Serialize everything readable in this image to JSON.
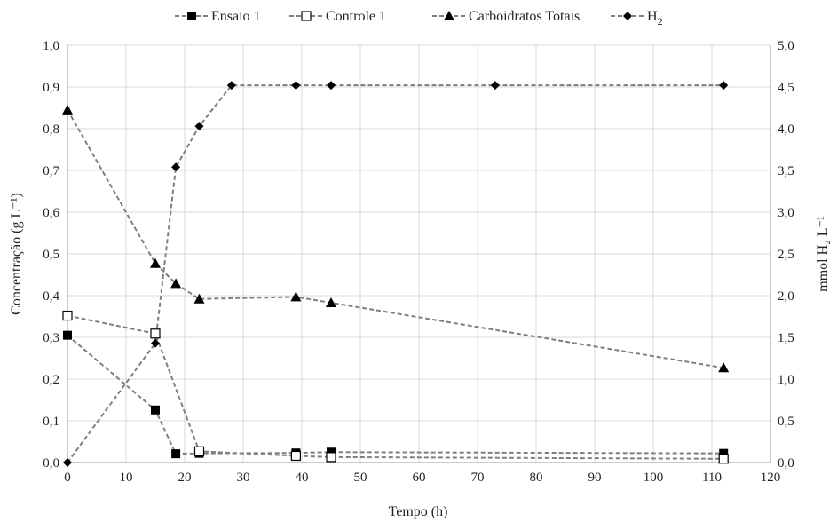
{
  "chart_data": {
    "type": "line",
    "xlabel": "Tempo (h)",
    "ylabel": "Concentração (g L⁻¹)",
    "y2label": "mmol H₂ L⁻¹",
    "xlim": [
      0,
      120
    ],
    "ylim": [
      0,
      1.0
    ],
    "y2lim": [
      0,
      5.0
    ],
    "x_ticks": [
      0,
      10,
      20,
      30,
      40,
      50,
      60,
      70,
      80,
      90,
      100,
      110,
      120
    ],
    "x_tick_labels": [
      "0",
      "10",
      "20",
      "30",
      "40",
      "50",
      "60",
      "70",
      "80",
      "90",
      "100",
      "110",
      "120"
    ],
    "y_ticks": [
      0,
      0.1,
      0.2,
      0.3,
      0.4,
      0.5,
      0.6,
      0.7,
      0.8,
      0.9,
      1.0
    ],
    "y_tick_labels": [
      "0,0",
      "0,1",
      "0,2",
      "0,3",
      "0,4",
      "0,5",
      "0,6",
      "0,7",
      "0,8",
      "0,9",
      "1,0"
    ],
    "y2_ticks": [
      0,
      0.5,
      1.0,
      1.5,
      2.0,
      2.5,
      3.0,
      3.5,
      4.0,
      4.5,
      5.0
    ],
    "y2_tick_labels": [
      "0,0",
      "0,5",
      "1,0",
      "1,5",
      "2,0",
      "2,5",
      "3,0",
      "3,5",
      "4,0",
      "4,5",
      "5,0"
    ],
    "grid": true,
    "legend_position": "top",
    "series": [
      {
        "name": "Ensaio 1",
        "marker": "square-filled",
        "axis": "left",
        "x": [
          0,
          15,
          18.5,
          22.5,
          39,
          45,
          112
        ],
        "y": [
          0.305,
          0.126,
          0.021,
          0.022,
          0.023,
          0.025,
          0.022
        ]
      },
      {
        "name": "Controle 1",
        "marker": "square-open",
        "axis": "left",
        "x": [
          0,
          15,
          22.5,
          39,
          45,
          112
        ],
        "y": [
          0.352,
          0.309,
          0.027,
          0.016,
          0.013,
          0.009
        ]
      },
      {
        "name": "Carboidratos Totais",
        "marker": "triangle-filled",
        "axis": "left",
        "x": [
          0,
          15,
          18.5,
          22.5,
          39,
          45,
          112
        ],
        "y": [
          0.845,
          0.477,
          0.429,
          0.392,
          0.397,
          0.383,
          0.227
        ]
      },
      {
        "name": "H",
        "name_sub": "2",
        "marker": "diamond-filled",
        "axis": "right",
        "x": [
          0,
          15,
          18.5,
          22.5,
          28,
          39,
          45,
          73,
          112
        ],
        "y": [
          0.0,
          1.43,
          3.54,
          4.03,
          4.52,
          4.52,
          4.52,
          4.52,
          4.52
        ]
      }
    ],
    "colors": {
      "line": "#7f7f7f",
      "marker": "#000000",
      "grid": "#d9d9d9"
    }
  }
}
